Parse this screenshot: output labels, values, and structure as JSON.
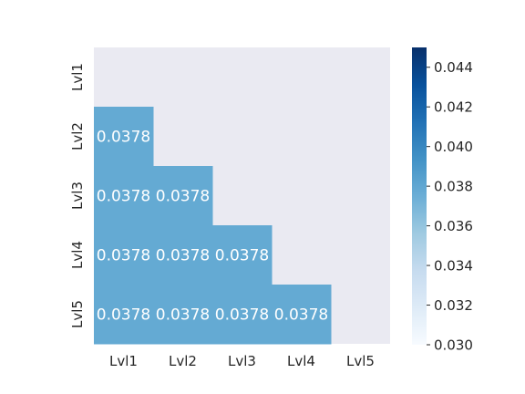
{
  "chart_data": {
    "type": "heatmap",
    "mask": "upper-triangle-and-diagonal",
    "rows": [
      "Lvl1",
      "Lvl2",
      "Lvl3",
      "Lvl4",
      "Lvl5"
    ],
    "cols": [
      "Lvl1",
      "Lvl2",
      "Lvl3",
      "Lvl4",
      "Lvl5"
    ],
    "values": [
      [
        null,
        null,
        null,
        null,
        null
      ],
      [
        0.0378,
        null,
        null,
        null,
        null
      ],
      [
        0.0378,
        0.0378,
        null,
        null,
        null
      ],
      [
        0.0378,
        0.0378,
        0.0378,
        null,
        null
      ],
      [
        0.0378,
        0.0378,
        0.0378,
        0.0378,
        null
      ]
    ],
    "annotations": [
      [
        null,
        null,
        null,
        null,
        null
      ],
      [
        "0.0378",
        null,
        null,
        null,
        null
      ],
      [
        "0.0378",
        "0.0378",
        null,
        null,
        null
      ],
      [
        "0.0378",
        "0.0378",
        "0.0378",
        null,
        null
      ],
      [
        "0.0378",
        "0.0378",
        "0.0378",
        "0.0378",
        null
      ]
    ],
    "colorbar": {
      "range": [
        0.03,
        0.045
      ],
      "ticks": [
        0.03,
        0.032,
        0.034,
        0.036,
        0.038,
        0.04,
        0.042,
        0.044
      ],
      "tick_labels": [
        "0.030",
        "0.032",
        "0.034",
        "0.036",
        "0.038",
        "0.040",
        "0.042",
        "0.044"
      ],
      "colormap": "Blues"
    },
    "title": "",
    "xlabel": "",
    "ylabel": "",
    "masked_color": "#eaeaf2",
    "label_color": "#ffffff"
  }
}
